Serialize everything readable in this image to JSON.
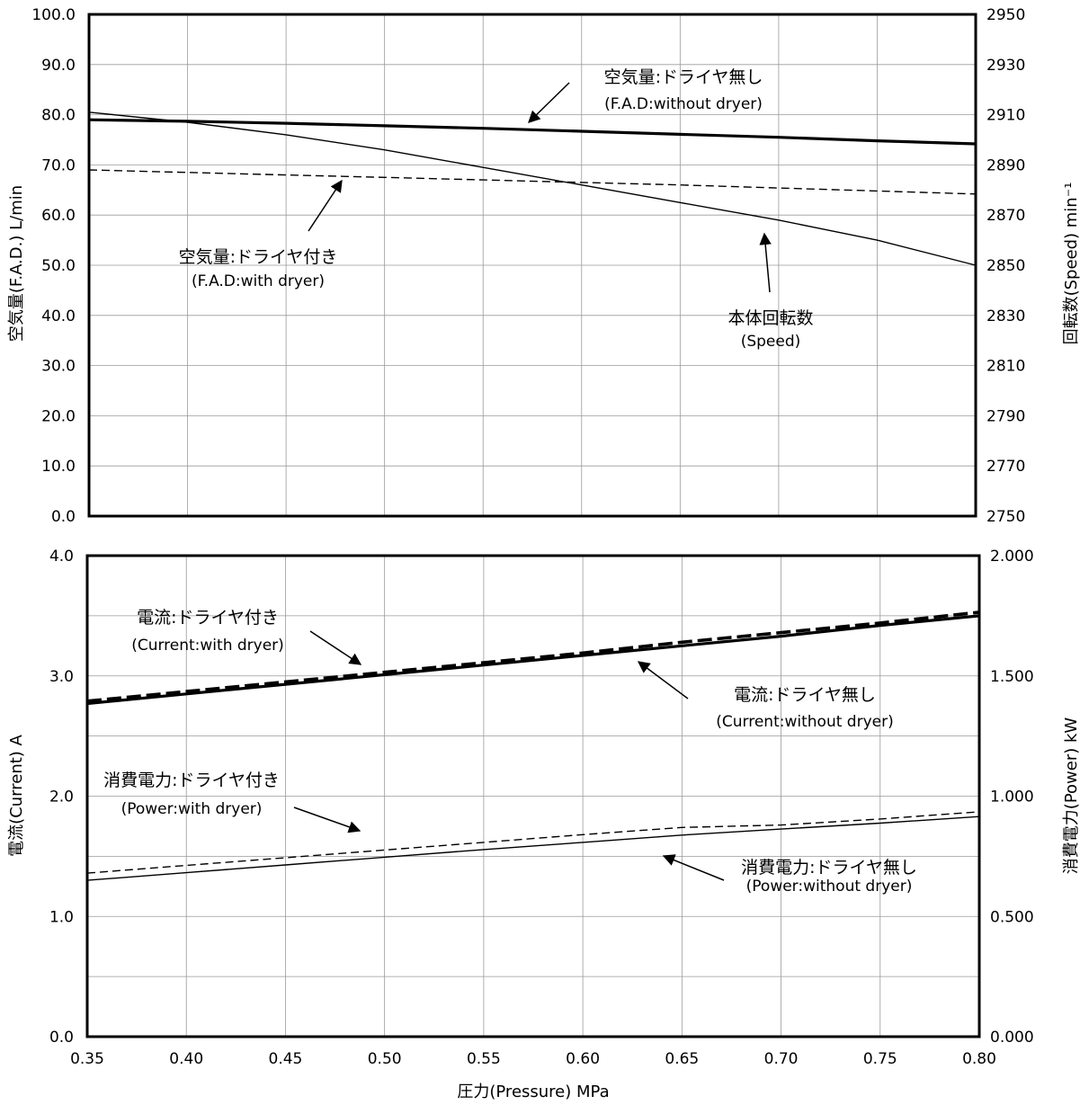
{
  "chart_data": [
    {
      "type": "line",
      "x": [
        0.35,
        0.4,
        0.45,
        0.5,
        0.55,
        0.6,
        0.65,
        0.7,
        0.75,
        0.8
      ],
      "xlim": [
        0.35,
        0.8
      ],
      "ylim": [
        0,
        100
      ],
      "y2lim": [
        2750,
        2950
      ],
      "yticks": [
        "0.0",
        "10.0",
        "20.0",
        "30.0",
        "40.0",
        "50.0",
        "60.0",
        "70.0",
        "80.0",
        "90.0",
        "100.0"
      ],
      "y2ticks": [
        "2750",
        "2770",
        "2790",
        "2810",
        "2830",
        "2850",
        "2870",
        "2890",
        "2910",
        "2930",
        "2950"
      ],
      "ylabel": "空気量(F.A.D.)  L/min",
      "y2label": "回転数(Speed)  min⁻¹",
      "grid": true,
      "series": [
        {
          "name": "空気量:ドライヤ無し (F.A.D:without dryer)",
          "axis": "left",
          "style": "thick",
          "values": [
            79.0,
            78.7,
            78.3,
            77.8,
            77.3,
            76.7,
            76.1,
            75.5,
            74.8,
            74.2
          ]
        },
        {
          "name": "空気量:ドライヤ付き (F.A.D:with dryer)",
          "axis": "left",
          "style": "dashed",
          "values": [
            69.0,
            68.5,
            68.0,
            67.5,
            67.0,
            66.5,
            66.0,
            65.4,
            64.8,
            64.2
          ]
        },
        {
          "name": "本体回転数 (Speed)",
          "axis": "right",
          "style": "thin",
          "values": [
            2911,
            2907,
            2902,
            2896,
            2889,
            2882,
            2875,
            2868,
            2860,
            2850
          ]
        }
      ]
    },
    {
      "type": "line",
      "x": [
        0.35,
        0.4,
        0.45,
        0.5,
        0.55,
        0.6,
        0.65,
        0.7,
        0.75,
        0.8
      ],
      "xlim": [
        0.35,
        0.8
      ],
      "ylim": [
        0,
        4
      ],
      "y2lim": [
        0,
        2
      ],
      "xticks": [
        "0.35",
        "0.40",
        "0.45",
        "0.50",
        "0.55",
        "0.60",
        "0.65",
        "0.70",
        "0.75",
        "0.80"
      ],
      "yticks": [
        "0.0",
        "1.0",
        "2.0",
        "3.0",
        "4.0"
      ],
      "y2ticks": [
        "0.000",
        "0.500",
        "1.000",
        "1.500",
        "2.000"
      ],
      "ylabel": "電流(Current)  A",
      "y2label": "消費電力(Power)  kW",
      "xlabel": "圧力(Pressure)  MPa",
      "grid": true,
      "series": [
        {
          "name": "電流:ドライヤ付き (Current:with dryer)",
          "axis": "left",
          "style": "thick-dashed",
          "values": [
            2.79,
            2.87,
            2.95,
            3.03,
            3.11,
            3.19,
            3.28,
            3.36,
            3.44,
            3.53
          ]
        },
        {
          "name": "電流:ドライヤ無し (Current:without dryer)",
          "axis": "left",
          "style": "thick",
          "values": [
            2.77,
            2.85,
            2.93,
            3.01,
            3.09,
            3.17,
            3.25,
            3.33,
            3.42,
            3.5
          ]
        },
        {
          "name": "消費電力:ドライヤ付き (Power:with dryer)",
          "axis": "right",
          "style": "dashed",
          "values": [
            0.68,
            0.712,
            0.744,
            0.776,
            0.808,
            0.84,
            0.87,
            0.88,
            0.905,
            0.935
          ]
        },
        {
          "name": "消費電力:ドライヤ無し (Power:without dryer)",
          "axis": "right",
          "style": "thin",
          "values": [
            0.65,
            0.682,
            0.714,
            0.746,
            0.778,
            0.808,
            0.838,
            0.863,
            0.888,
            0.915
          ]
        }
      ]
    }
  ],
  "annotations": {
    "top": [
      {
        "main": "空気量:ドライヤ無し",
        "sub": "(F.A.D:without dryer)"
      },
      {
        "main": "空気量:ドライヤ付き",
        "sub": "(F.A.D:with dryer)"
      },
      {
        "main": "本体回転数",
        "sub": "(Speed)"
      }
    ],
    "bottom": [
      {
        "main": "電流:ドライヤ付き",
        "sub": "(Current:with dryer)"
      },
      {
        "main": "電流:ドライヤ無し",
        "sub": "(Current:without dryer)"
      },
      {
        "main": "消費電力:ドライヤ付き",
        "sub": "(Power:with dryer)"
      },
      {
        "main": "消費電力:ドライヤ無し",
        "sub": "(Power:without dryer)"
      }
    ]
  }
}
